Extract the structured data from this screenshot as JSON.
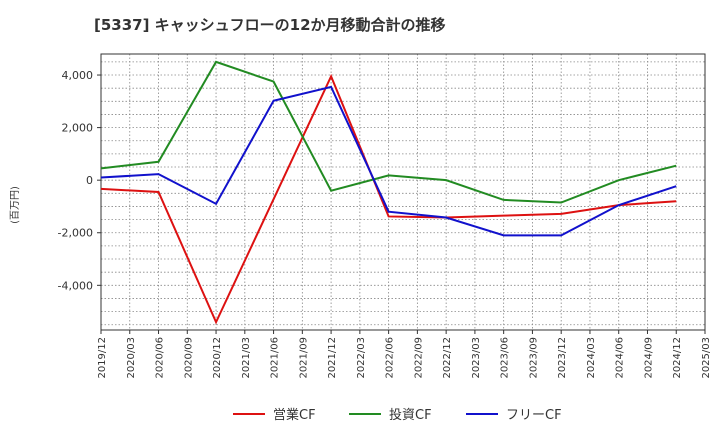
{
  "chart_data": {
    "type": "line",
    "title": "[5337]  キャッシュフローの12か月移動合計の推移",
    "ylabel": "(百万円)",
    "xlabel": "",
    "ylim": [
      -5700,
      4800
    ],
    "yticks": [
      -4000,
      -2000,
      0,
      2000,
      4000
    ],
    "ytick_labels": [
      "-4,000",
      "-2,000",
      "0",
      "2,000",
      "4,000"
    ],
    "grid": true,
    "legend_position": "bottom",
    "categories": [
      "2019/12",
      "2020/03",
      "2020/06",
      "2020/09",
      "2020/12",
      "2021/03",
      "2021/06",
      "2021/09",
      "2021/12",
      "2022/03",
      "2022/06",
      "2022/09",
      "2022/12",
      "2023/03",
      "2023/06",
      "2023/09",
      "2023/12",
      "2024/03",
      "2024/06",
      "2024/09",
      "2024/12",
      "2025/03"
    ],
    "series": [
      {
        "name": "営業CF",
        "color": "#dd1111",
        "values": [
          -330,
          null,
          -450,
          null,
          -5400,
          null,
          null,
          null,
          3950,
          null,
          -1380,
          null,
          -1420,
          null,
          -1350,
          null,
          -1280,
          null,
          -950,
          null,
          -800,
          null
        ]
      },
      {
        "name": "投資CF",
        "color": "#228b22",
        "values": [
          450,
          null,
          700,
          null,
          4500,
          null,
          3750,
          null,
          -400,
          null,
          180,
          null,
          0,
          null,
          -750,
          null,
          -850,
          null,
          0,
          null,
          550,
          null
        ]
      },
      {
        "name": "フリーCF",
        "color": "#1111cc",
        "values": [
          100,
          null,
          230,
          null,
          -900,
          null,
          3020,
          null,
          3550,
          null,
          -1200,
          null,
          -1420,
          null,
          -2100,
          null,
          -2100,
          null,
          -950,
          null,
          -230,
          null
        ]
      }
    ]
  }
}
